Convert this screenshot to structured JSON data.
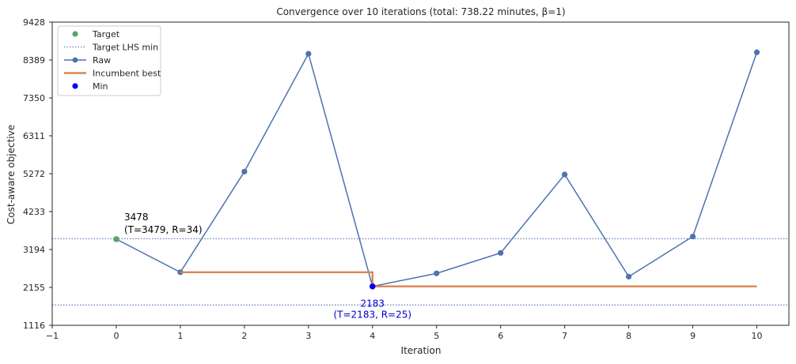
{
  "chart_data": {
    "type": "line",
    "title": "Convergence over 10 iterations (total: 738.22 minutes, β=1)",
    "xlabel": "Iteration",
    "ylabel": "Cost-aware objective",
    "xlim": [
      -1,
      10.5
    ],
    "ylim": [
      1116,
      9428
    ],
    "x_ticks": [
      "−1",
      "0",
      "1",
      "2",
      "3",
      "4",
      "5",
      "6",
      "7",
      "8",
      "9",
      "10"
    ],
    "y_ticks": [
      "1116",
      "2155",
      "3194",
      "4233",
      "5272",
      "6311",
      "7350",
      "8389",
      "9428"
    ],
    "grid": false,
    "legend_position": "top-left",
    "series": [
      {
        "name": "Target",
        "kind": "point",
        "color": "#55a868",
        "points": [
          {
            "x": 0,
            "y": 3478
          }
        ]
      },
      {
        "name": "Target LHS min",
        "kind": "hlines",
        "color": "#4c72b0",
        "y_values": [
          3490,
          1675
        ]
      },
      {
        "name": "Raw",
        "kind": "line-markers",
        "color": "#4c72b0",
        "x": [
          0,
          1,
          2,
          3,
          4,
          5,
          6,
          7,
          8,
          9,
          10
        ],
        "y": [
          3478,
          2570,
          5330,
          8560,
          2183,
          2540,
          3100,
          5250,
          2450,
          3550,
          8600
        ]
      },
      {
        "name": "Incumbent best",
        "kind": "step",
        "color": "#dd8452",
        "x": [
          1,
          4,
          10
        ],
        "y": [
          2570,
          2183,
          2183
        ]
      },
      {
        "name": "Min",
        "kind": "point",
        "color": "#0000ff",
        "points": [
          {
            "x": 4,
            "y": 2183
          }
        ]
      }
    ],
    "annotations": [
      {
        "line1": "3478",
        "line2": "(T=3479, R=34)",
        "x": 0,
        "y": 3478,
        "color": "#000000"
      },
      {
        "line1": "2183",
        "line2": "(T=2183, R=25)",
        "x": 4,
        "y": 2183,
        "color": "#0000cc"
      }
    ]
  }
}
